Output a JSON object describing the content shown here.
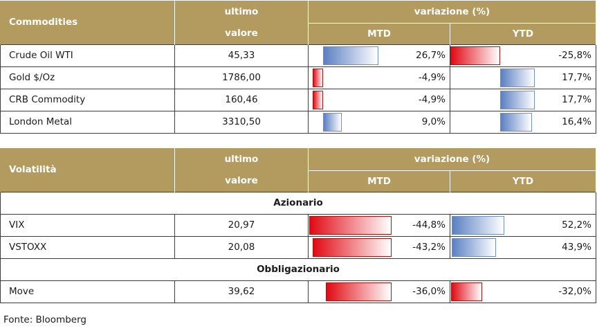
{
  "commodities": {
    "header": {
      "title": "Commodities",
      "last_line1": "ultimo",
      "last_line2": "valore",
      "change": "variazione (%)",
      "mtd": "MTD",
      "ytd": "YTD"
    },
    "rows": [
      {
        "name": "Crude Oil WTI",
        "value": "45,33",
        "mtd": "26,7%",
        "ytd": "-25,8%",
        "mtd_num": 26.7,
        "ytd_num": -25.8
      },
      {
        "name": "Gold $/Oz",
        "value": "1786,00",
        "mtd": "-4,9%",
        "ytd": "17,7%",
        "mtd_num": -4.9,
        "ytd_num": 17.7
      },
      {
        "name": "CRB Commodity",
        "value": "160,46",
        "mtd": "-4,9%",
        "ytd": "17,7%",
        "mtd_num": -4.9,
        "ytd_num": 17.7
      },
      {
        "name": "London Metal",
        "value": "3310,50",
        "mtd": "9,0%",
        "ytd": "16,4%",
        "mtd_num": 9.0,
        "ytd_num": 16.4
      }
    ]
  },
  "volatility": {
    "header": {
      "title": "Volatilità",
      "last_line1": "ultimo",
      "last_line2": "valore",
      "change": "variazione (%)",
      "mtd": "MTD",
      "ytd": "YTD"
    },
    "section_equity": "Azionario",
    "section_bond": "Obbligazionario",
    "equity_rows": [
      {
        "name": "VIX",
        "value": "20,97",
        "mtd": "-44,8%",
        "ytd": "52,2%",
        "mtd_num": -44.8,
        "ytd_num": 52.2
      },
      {
        "name": "VSTOXX",
        "value": "20,08",
        "mtd": "-43,2%",
        "ytd": "43,9%",
        "mtd_num": -43.2,
        "ytd_num": 43.9
      }
    ],
    "bond_rows": [
      {
        "name": "Move",
        "value": "39,62",
        "mtd": "-36,0%",
        "ytd": "-32,0%",
        "mtd_num": -36.0,
        "ytd_num": -32.0
      }
    ]
  },
  "source": "Fonte: Bloomberg",
  "colors": {
    "header_bg": "#b39a5f",
    "negative": "#e00a14",
    "positive": "#5b80c2"
  }
}
